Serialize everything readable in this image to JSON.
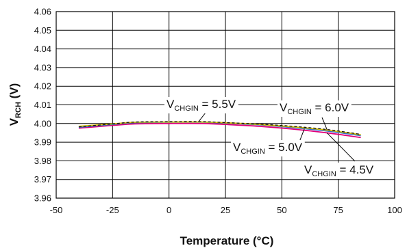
{
  "chart_data": {
    "type": "line",
    "title": "",
    "xlabel": "Temperature (°C)",
    "ylabel": {
      "main": "V",
      "sub": "RCH",
      "unit": " (V)"
    },
    "xlim": [
      -50,
      100
    ],
    "ylim": [
      3.96,
      4.06
    ],
    "x_ticks": [
      "-50",
      "-25",
      "0",
      "25",
      "50",
      "75",
      "100"
    ],
    "y_ticks": [
      "3.96",
      "3.97",
      "3.98",
      "3.99",
      "4.00",
      "4.01",
      "4.02",
      "4.03",
      "4.04",
      "4.05",
      "4.06"
    ],
    "grid": true,
    "series": [
      {
        "name": "V_CHGIN = 4.5V",
        "label": {
          "main": "V",
          "sub": "CHGIN",
          "value": " = 4.5V"
        },
        "color": "#e0007a",
        "dash": "solid",
        "x": [
          -40,
          -25,
          -15,
          0,
          15,
          25,
          40,
          55,
          70,
          85
        ],
        "y": [
          3.9975,
          3.999,
          3.9998,
          4.0,
          4.0,
          3.9995,
          3.9985,
          3.997,
          3.995,
          3.9925
        ]
      },
      {
        "name": "V_CHGIN = 5.0V",
        "label": {
          "main": "V",
          "sub": "CHGIN",
          "value": " = 5.0V"
        },
        "color": "#2e6fd0",
        "dash": "solid",
        "x": [
          -40,
          -25,
          -15,
          0,
          15,
          25,
          40,
          55,
          70,
          85
        ],
        "y": [
          3.998,
          3.9995,
          4.0005,
          4.0007,
          4.0007,
          4.0002,
          3.9993,
          3.9978,
          3.996,
          3.9935
        ]
      },
      {
        "name": "V_CHGIN = 5.5V",
        "label": {
          "main": "V",
          "sub": "CHGIN",
          "value": " = 5.5V"
        },
        "color": "#d8c000",
        "dash": "solid",
        "x": [
          -40,
          -25,
          -15,
          0,
          15,
          25,
          40,
          55,
          70,
          85
        ],
        "y": [
          3.9985,
          3.9998,
          4.0007,
          4.0008,
          4.0008,
          4.0004,
          3.9995,
          3.9982,
          3.9965,
          3.994
        ]
      },
      {
        "name": "V_CHGIN = 6.0V",
        "label": {
          "main": "V",
          "sub": "CHGIN",
          "value": " = 6.0V"
        },
        "color": "#111111",
        "dash": "dashed",
        "x": [
          -40,
          -25,
          -15,
          0,
          15,
          25,
          40,
          55,
          70,
          85
        ],
        "y": [
          3.9982,
          3.9998,
          4.0008,
          4.001,
          4.001,
          4.0005,
          3.9997,
          3.9985,
          3.9968,
          3.9942
        ]
      }
    ]
  }
}
